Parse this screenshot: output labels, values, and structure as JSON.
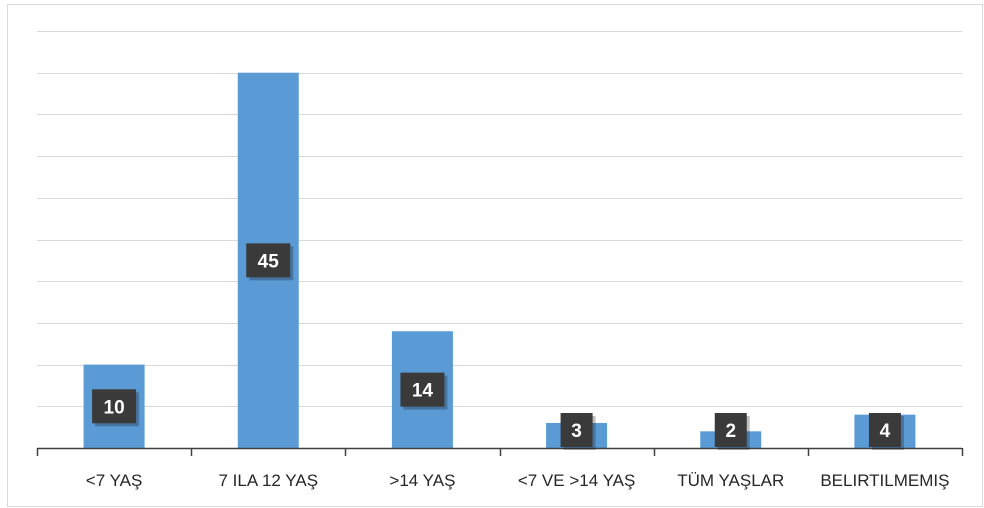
{
  "chart_data": {
    "type": "bar",
    "categories": [
      "<7 YAŞ",
      "7 ILA 12 YAŞ",
      ">14 YAŞ",
      "<7 VE >14 YAŞ",
      "TÜM YAŞLAR",
      "BELIRTILMEMIŞ"
    ],
    "values": [
      10,
      45,
      14,
      3,
      2,
      4
    ],
    "title": "",
    "xlabel": "",
    "ylabel": "",
    "ylim": [
      0,
      50
    ],
    "grid": true,
    "legend": "none",
    "colors": {
      "bar": "#5b9bd5",
      "grid": "#d9d9d9",
      "axis": "#404040",
      "label_bg": "#3a3a3a",
      "label_text": "#ffffff"
    }
  }
}
